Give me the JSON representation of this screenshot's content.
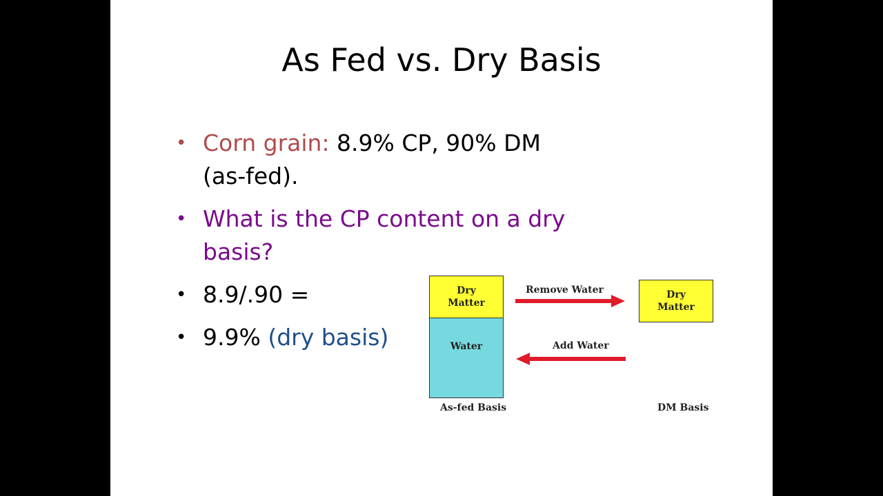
{
  "slide": {
    "title": "As Fed vs. Dry Basis",
    "bullets": [
      {
        "prefix": "Corn grain:",
        "text": " 8.9% CP, 90% DM (as-fed)."
      },
      {
        "text": "What is the CP content on a dry basis?"
      },
      {
        "text": "8.9/.90 ="
      },
      {
        "text": "9.9% ",
        "suffix": "(dry basis)"
      }
    ],
    "bullet_symbol": "•"
  },
  "diagram": {
    "asfed_dry": "Dry Matter",
    "asfed_water": "Water",
    "dm_dry": "Dry Matter",
    "remove_water": "Remove Water",
    "add_water": "Add Water",
    "asfed_label": "As-fed Basis",
    "dm_label": "DM Basis",
    "colors": {
      "dry_matter": "#ffff33",
      "water": "#77d9e0",
      "arrow": "#e01b2a"
    }
  }
}
